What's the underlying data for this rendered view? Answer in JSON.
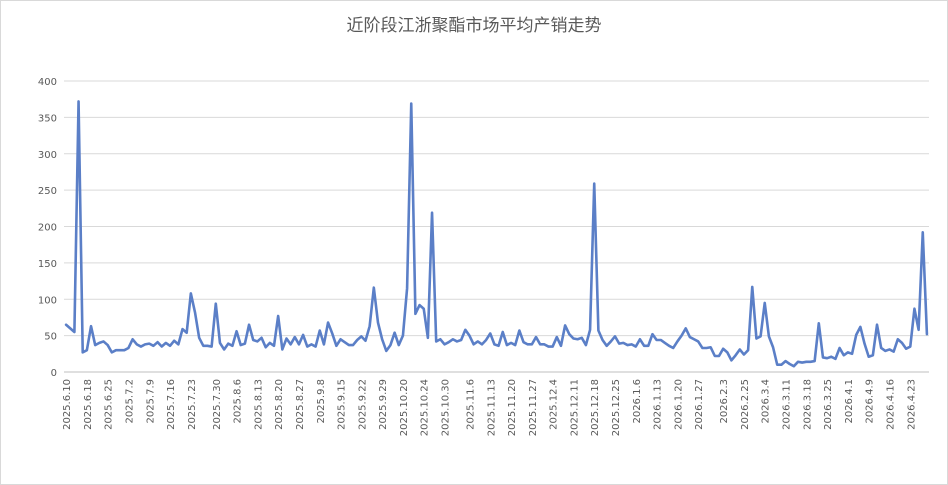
{
  "chart_data": {
    "type": "line",
    "title": "近阶段江浙聚酯市场平均产销走势",
    "xlabel": "",
    "ylabel": "",
    "ylim": [
      0,
      400
    ],
    "yticks": [
      0,
      50,
      100,
      150,
      200,
      250,
      300,
      350,
      400
    ],
    "grid": true,
    "legend": "none",
    "line_color": "#5b7fc7",
    "xticks": [
      "2025.6.10",
      "2025.6.18",
      "2025.6.25",
      "2025.7.2",
      "2025.7.9",
      "2025.7.16",
      "2025.7.23",
      "2025.7.30",
      "2025.8.6",
      "2025.8.13",
      "2025.8.20",
      "2025.8.27",
      "2025.9.8",
      "2025.9.15",
      "2025.9.22",
      "2025.9.29",
      "2025.10.20",
      "2025.10.24",
      "2025.10.30",
      "2025.11.6",
      "2025.11.13",
      "2025.11.20",
      "2025.11.27",
      "2025.12.4",
      "2025.12.11",
      "2025.12.18",
      "2025.12.25",
      "2026.1.6",
      "2026.1.13",
      "2026.1.20",
      "2026.1.27",
      "2026.2.3",
      "2026.2.25",
      "2026.3.4",
      "2026.3.11",
      "2026.3.18",
      "2026.3.25",
      "2026.4.1",
      "2026.4.9",
      "2026.4.16",
      "2026.4.23"
    ],
    "series": [
      {
        "values": [
          65,
          60,
          55,
          372,
          27,
          30,
          63,
          37,
          40,
          42,
          37,
          27,
          30,
          30,
          30,
          33,
          45,
          38,
          35,
          38,
          39,
          36,
          41,
          35,
          40,
          36,
          43,
          38,
          59,
          54,
          108,
          82,
          47,
          36,
          36,
          35,
          94,
          40,
          31,
          39,
          36,
          56,
          37,
          39,
          65,
          44,
          42,
          47,
          34,
          40,
          36,
          77,
          31,
          46,
          38,
          48,
          38,
          51,
          35,
          38,
          35,
          57,
          38,
          68,
          53,
          36,
          45,
          41,
          37,
          37,
          44,
          49,
          43,
          63,
          116,
          68,
          45,
          29,
          37,
          54,
          37,
          50,
          115,
          369,
          80,
          92,
          87,
          47,
          219,
          42,
          45,
          38,
          41,
          45,
          42,
          44,
          58,
          50,
          38,
          42,
          38,
          44,
          53,
          38,
          36,
          55,
          37,
          40,
          37,
          57,
          41,
          38,
          38,
          48,
          38,
          38,
          35,
          35,
          48,
          36,
          64,
          52,
          46,
          45,
          47,
          37,
          58,
          259,
          57,
          44,
          36,
          42,
          49,
          39,
          40,
          37,
          38,
          35,
          45,
          36,
          36,
          52,
          44,
          44,
          40,
          36,
          33,
          42,
          50,
          60,
          48,
          45,
          42,
          33,
          33,
          34,
          22,
          22,
          32,
          27,
          16,
          23,
          31,
          24,
          30,
          117,
          46,
          49,
          95,
          49,
          34,
          10,
          10,
          15,
          11,
          8,
          14,
          13,
          14,
          14,
          15,
          67,
          20,
          19,
          21,
          18,
          33,
          23,
          27,
          25,
          51,
          62,
          39,
          21,
          23,
          65,
          33,
          29,
          31,
          28,
          45,
          40,
          32,
          35,
          87,
          58,
          192,
          52
        ]
      }
    ]
  }
}
